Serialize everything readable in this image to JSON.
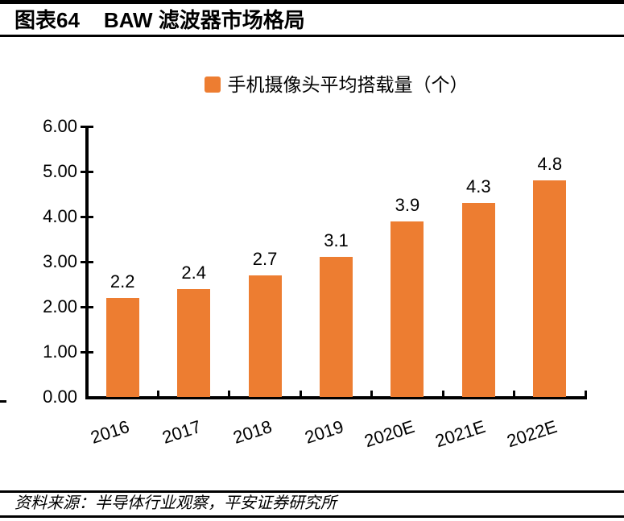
{
  "header": {
    "figure_label": "图表64",
    "title": "BAW 滤波器市场格局"
  },
  "chart_data": {
    "type": "bar",
    "legend": "手机摄像头平均搭载量（个）",
    "legend_position": "top",
    "categories": [
      "2016",
      "2017",
      "2018",
      "2019",
      "2020E",
      "2021E",
      "2022E"
    ],
    "values": [
      2.2,
      2.4,
      2.7,
      3.1,
      3.9,
      4.3,
      4.8
    ],
    "data_labels": [
      "2.2",
      "2.4",
      "2.7",
      "3.1",
      "3.9",
      "4.3",
      "4.8"
    ],
    "y_ticks": [
      "0.00",
      "1.00",
      "2.00",
      "3.00",
      "4.00",
      "5.00",
      "6.00"
    ],
    "ylim": [
      0,
      6
    ],
    "xlabel": "",
    "ylabel": "",
    "grid": false,
    "bar_color": "#ED7D31",
    "axis_color": "#000000"
  },
  "footer": {
    "source": "资料来源：半导体行业观察，平安证券研究所"
  }
}
